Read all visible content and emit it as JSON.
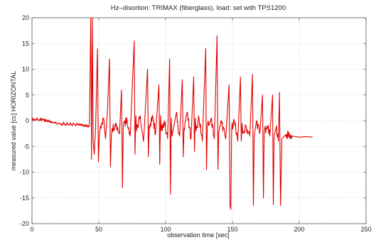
{
  "chart_data": {
    "type": "line",
    "title": "Hz–disortion: TRIMAX (fiberglass), load: set with TPS1200",
    "xlabel": "observation time [sec]",
    "ylabel": "measured value [cc] HORIZONTAL",
    "xlim": [
      0,
      250
    ],
    "ylim": [
      -20,
      20
    ],
    "x_ticks": [
      0,
      50,
      100,
      150,
      200,
      250
    ],
    "y_ticks": [
      -20,
      -15,
      -10,
      -5,
      0,
      5,
      10,
      15,
      20
    ],
    "x_tick_labels": [
      "0",
      "50",
      "100",
      "150",
      "200",
      "250"
    ],
    "y_tick_labels": [
      "-20",
      "-15",
      "-10",
      "-5",
      "0",
      "5",
      "10",
      "15",
      "20"
    ],
    "grid": true,
    "series": [
      {
        "color": "#e00000",
        "x": [
          0,
          4,
          8,
          12,
          16,
          20,
          24,
          28,
          32,
          36,
          40,
          43,
          44,
          44.6,
          45.2,
          45.8,
          46.6,
          47.6,
          49.0,
          49.7,
          50.4,
          51.2,
          53.5,
          55.0,
          56.5,
          58.0,
          58.7,
          59.4,
          60.0,
          63,
          65.5,
          67.0,
          67.7,
          68.3,
          71,
          73.5,
          76.5,
          77.1,
          77.7,
          78.3,
          81,
          83.5,
          86.5,
          87.1,
          87.7,
          90.5,
          92.5,
          95.0,
          95.6,
          96.2,
          96.8,
          99,
          101.5,
          103.0,
          103.6,
          104.2,
          104.8,
          108,
          110.5,
          112.5,
          113.2,
          113.8,
          116,
          119,
          121.0,
          121.6,
          122.2,
          122.8,
          125,
          127.5,
          130.0,
          130.6,
          131.2,
          134,
          136.5,
          138.5,
          139.2,
          139.8,
          142,
          145,
          147.5,
          148.2,
          148.8,
          149.4,
          151.5,
          154,
          156.0,
          156.6,
          157.2,
          157.8,
          160,
          163,
          165.0,
          165.7,
          166.3,
          168,
          170.5,
          172.5,
          173.2,
          173.8,
          176,
          178,
          180.0,
          180.6,
          181.2,
          183,
          184.4,
          185.2,
          186.0,
          187,
          190,
          195,
          200,
          205,
          210
        ],
        "y": [
          0.3,
          0.2,
          0.1,
          -0.2,
          -0.4,
          -0.5,
          -0.6,
          -0.7,
          -0.8,
          -0.9,
          -1.0,
          -1.1,
          20,
          -7.5,
          20,
          -4,
          -6.5,
          -1.5,
          14,
          -8,
          -3,
          -1,
          0.5,
          -3.5,
          2,
          12,
          -9,
          -3,
          -1.5,
          -0.5,
          -2.5,
          6,
          -13,
          -1.5,
          0.5,
          -3,
          15.5,
          -6.5,
          1,
          -2,
          1,
          -4,
          10,
          -7,
          -1,
          0.5,
          -2.5,
          7,
          -8.5,
          1,
          -2,
          0,
          -3.5,
          12,
          -14.3,
          0.5,
          -3,
          1.5,
          -3,
          8,
          -7,
          -1.5,
          1.5,
          -3.5,
          8.5,
          -6,
          0.5,
          -2,
          0.5,
          -4,
          14,
          -9.5,
          -1,
          0.5,
          -3.5,
          16.5,
          -9.5,
          -2,
          -0.5,
          -3.5,
          7,
          -16.5,
          -17.2,
          -1.5,
          0,
          -4,
          8.5,
          -4,
          -0.5,
          -2.5,
          -1,
          -3,
          9,
          -16.5,
          -3,
          0,
          -2.5,
          5,
          -15,
          -2,
          -1,
          -3,
          5,
          -16.3,
          -3,
          -1,
          -4,
          5.5,
          -16.5,
          -3.5,
          -2.7,
          -3.0,
          -3.2,
          -3.1,
          -3.2
        ]
      }
    ]
  }
}
